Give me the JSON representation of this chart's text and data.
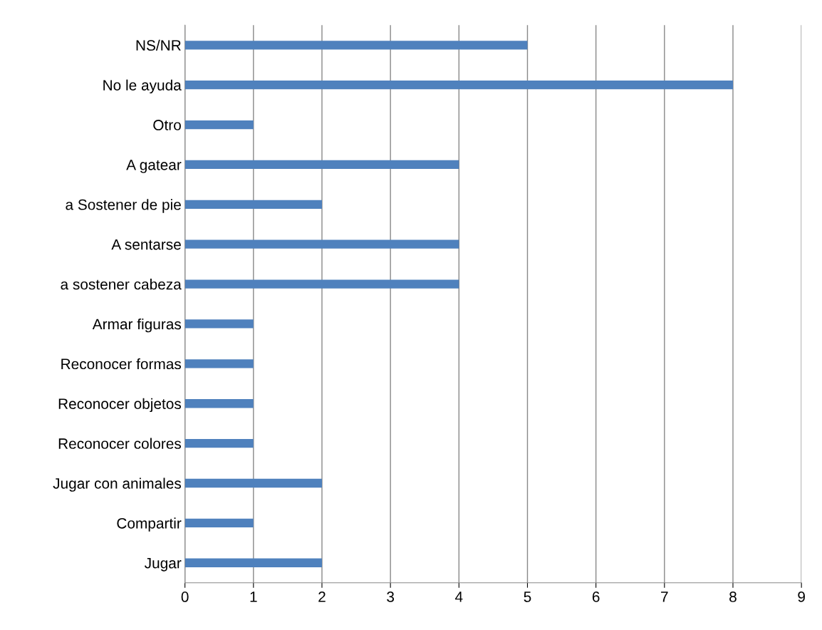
{
  "chart_data": {
    "type": "bar",
    "orientation": "horizontal",
    "categories": [
      "NS/NR",
      "No le ayuda",
      "Otro",
      "A gatear",
      "a Sostener de pie",
      "A sentarse",
      "a sostener cabeza",
      "Armar figuras",
      "Reconocer formas",
      "Reconocer objetos",
      "Reconocer colores",
      "Jugar con animales",
      "Compartir",
      "Jugar"
    ],
    "values": [
      5,
      8,
      1,
      4,
      2,
      4,
      4,
      1,
      1,
      1,
      1,
      2,
      1,
      2
    ],
    "color": "#4f81bd",
    "xlim": [
      0,
      9
    ],
    "xticks": [
      0,
      1,
      2,
      3,
      4,
      5,
      6,
      7,
      8,
      9
    ],
    "grid": "x",
    "legend": false
  }
}
